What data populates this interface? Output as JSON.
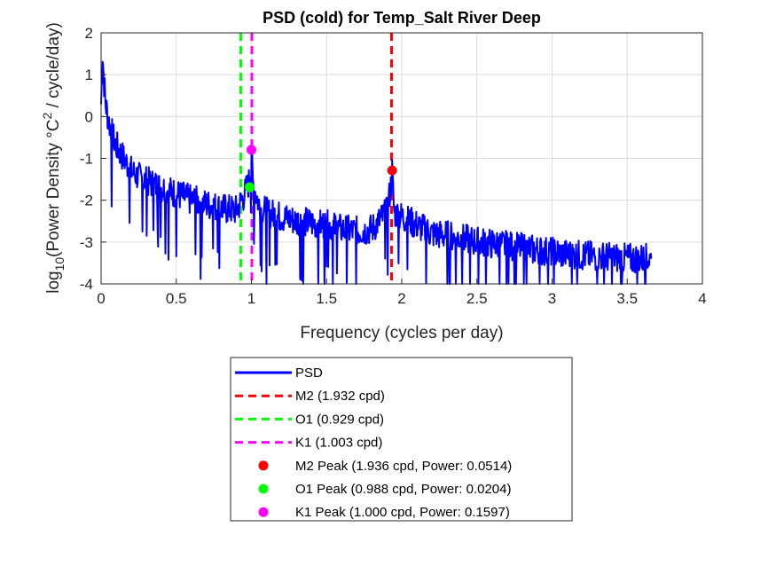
{
  "chart_data": {
    "type": "line",
    "title": "PSD (cold) for Temp_Salt River Deep",
    "xlabel": "Frequency (cycles per day)",
    "ylabel": {
      "prefix": "log",
      "prefix_sub": "10",
      "main": "(Power Density ",
      "degree": "°",
      "unit": "C",
      "unit_sup": "2",
      "suffix": " / cycle/day)"
    },
    "xlim": [
      0,
      4
    ],
    "ylim": [
      -4,
      2
    ],
    "xticks": [
      "0",
      "0.5",
      "1",
      "1.5",
      "2",
      "2.5",
      "3",
      "3.5",
      "4"
    ],
    "xtick_values": [
      0,
      0.5,
      1,
      1.5,
      2,
      2.5,
      3,
      3.5,
      4
    ],
    "yticks": [
      "2",
      "1",
      "0",
      "-1",
      "-2",
      "-3",
      "-4"
    ],
    "ytick_values": [
      2,
      1,
      0,
      -1,
      -2,
      -3,
      -4
    ],
    "grid": true,
    "legend_position": "below-plot",
    "series": [
      {
        "name": "PSD",
        "color": "#0000ff",
        "style": "solid",
        "x": [
          0.0,
          0.01,
          0.02,
          0.03,
          0.05,
          0.08,
          0.1,
          0.15,
          0.2,
          0.25,
          0.3,
          0.4,
          0.5,
          0.6,
          0.7,
          0.8,
          0.9,
          0.95,
          0.99,
          1.0,
          1.01,
          1.05,
          1.1,
          1.2,
          1.3,
          1.4,
          1.5,
          1.6,
          1.7,
          1.8,
          1.9,
          1.93,
          1.936,
          1.95,
          2.0,
          2.1,
          2.2,
          2.3,
          2.5,
          2.7,
          2.9,
          3.1,
          3.3,
          3.5,
          3.66
        ],
        "y": [
          0.3,
          1.5,
          0.8,
          0.3,
          -0.1,
          -0.5,
          -0.7,
          -1.0,
          -1.3,
          -1.45,
          -1.55,
          -1.7,
          -1.85,
          -2.0,
          -2.1,
          -2.2,
          -2.25,
          -1.9,
          -1.5,
          -0.8,
          -1.6,
          -2.1,
          -2.3,
          -2.4,
          -2.5,
          -2.55,
          -2.6,
          -2.7,
          -2.75,
          -2.7,
          -2.3,
          -1.6,
          -1.3,
          -2.3,
          -2.4,
          -2.6,
          -2.8,
          -2.85,
          -3.0,
          -3.1,
          -3.2,
          -3.3,
          -3.35,
          -3.4,
          -3.4
        ]
      }
    ],
    "reference_lines": [
      {
        "name": "M2 (1.932 cpd)",
        "x": 1.932,
        "color": "#ff0000"
      },
      {
        "name": "O1 (0.929 cpd)",
        "x": 0.929,
        "color": "#00ff00"
      },
      {
        "name": "K1 (1.003 cpd)",
        "x": 1.003,
        "color": "#ff00ff"
      }
    ],
    "peaks": [
      {
        "name": "M2 Peak (1.936 cpd, Power: 0.0514)",
        "x": 1.936,
        "power": 0.0514,
        "color": "#ff0000"
      },
      {
        "name": "O1 Peak (0.988 cpd, Power: 0.0204)",
        "x": 0.988,
        "power": 0.0204,
        "color": "#00ff00"
      },
      {
        "name": "K1 Peak (1.000 cpd, Power: 0.1597)",
        "x": 1.0,
        "power": 0.1597,
        "color": "#ff00ff"
      }
    ]
  }
}
